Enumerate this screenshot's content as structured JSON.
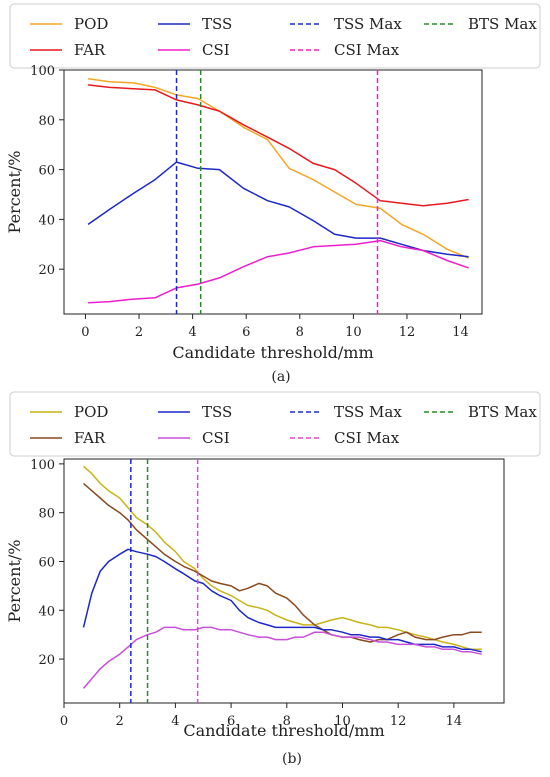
{
  "chart_data": [
    {
      "type": "line",
      "caption": "(a)",
      "xlabel": "Candidate threshold/mm",
      "ylabel": "Percent/%",
      "xlim": [
        -0.8,
        14.8
      ],
      "ylim": [
        2,
        100
      ],
      "xticks": [
        0,
        2,
        4,
        6,
        8,
        10,
        12,
        14
      ],
      "yticks": [
        20,
        40,
        60,
        80,
        100
      ],
      "grid": false,
      "legend_position": "top",
      "series": [
        {
          "name": "POD",
          "color": "#f5a623",
          "style": "solid",
          "x": [
            0.1,
            0.9,
            1.8,
            2.6,
            3.4,
            4.2,
            5.0,
            5.9,
            6.8,
            7.6,
            8.5,
            9.3,
            10.1,
            11.0,
            11.8,
            12.6,
            13.5,
            14.3
          ],
          "y": [
            96.5,
            95.3,
            94.8,
            93.0,
            90.0,
            88.5,
            83.5,
            77.0,
            72.0,
            60.5,
            56.0,
            51.0,
            46.0,
            44.5,
            38.0,
            34.0,
            28.0,
            24.5
          ]
        },
        {
          "name": "FAR",
          "color": "#e8191c",
          "style": "solid",
          "x": [
            0.1,
            0.9,
            1.8,
            2.6,
            3.4,
            4.2,
            5.0,
            5.9,
            6.8,
            7.6,
            8.5,
            9.3,
            10.1,
            11.0,
            11.8,
            12.6,
            13.5,
            14.3
          ],
          "y": [
            94.0,
            93.0,
            92.5,
            92.0,
            88.0,
            86.0,
            83.5,
            78.0,
            73.0,
            68.5,
            62.5,
            60.0,
            54.5,
            47.5,
            46.5,
            45.5,
            46.5,
            48.0
          ]
        },
        {
          "name": "TSS",
          "color": "#1c28c8",
          "style": "solid",
          "x": [
            0.1,
            0.9,
            1.8,
            2.6,
            3.4,
            4.2,
            5.0,
            5.9,
            6.8,
            7.6,
            8.5,
            9.3,
            10.1,
            11.0,
            11.8,
            12.6,
            13.5,
            14.3
          ],
          "y": [
            38.0,
            44.0,
            50.5,
            56.0,
            63.0,
            60.5,
            60.0,
            52.5,
            47.5,
            45.0,
            39.5,
            34.0,
            32.5,
            32.5,
            30.0,
            27.5,
            26.0,
            25.0
          ]
        },
        {
          "name": "CSI",
          "color": "#f01ecd",
          "style": "solid",
          "x": [
            0.1,
            0.9,
            1.8,
            2.6,
            3.4,
            4.2,
            5.0,
            5.9,
            6.8,
            7.6,
            8.5,
            9.3,
            10.1,
            11.0,
            11.8,
            12.6,
            13.5,
            14.3
          ],
          "y": [
            6.5,
            7.0,
            8.0,
            8.5,
            12.5,
            14.0,
            16.5,
            21.0,
            25.0,
            26.5,
            29.0,
            29.5,
            30.0,
            31.5,
            29.0,
            27.5,
            23.5,
            20.5
          ]
        },
        {
          "name": "TSS Max",
          "color": "#1c28c8",
          "style": "dashed",
          "vline": 3.4
        },
        {
          "name": "CSI Max",
          "color": "#f01ecd",
          "style": "dashed",
          "vline": 10.9
        },
        {
          "name": "BTS Max",
          "color": "#2a8a2a",
          "style": "dashed",
          "vline": 4.3
        }
      ]
    },
    {
      "type": "line",
      "caption": "(b)",
      "xlabel": "Candidate threshold/mm",
      "ylabel": "Percent/%",
      "xlim": [
        0,
        15.8
      ],
      "ylim": [
        2,
        102
      ],
      "xticks": [
        0,
        2,
        4,
        6,
        8,
        10,
        12,
        14
      ],
      "yticks": [
        20,
        40,
        60,
        80,
        100
      ],
      "grid": false,
      "legend_position": "top",
      "series": [
        {
          "name": "POD",
          "color": "#c9b416",
          "style": "solid",
          "x": [
            0.7,
            1.0,
            1.3,
            1.6,
            2.0,
            2.3,
            2.6,
            3.0,
            3.3,
            3.6,
            4.0,
            4.3,
            4.7,
            5.0,
            5.3,
            5.6,
            6.0,
            6.3,
            6.6,
            7.0,
            7.3,
            7.6,
            8.0,
            8.3,
            8.6,
            9.0,
            9.3,
            9.6,
            10.0,
            10.3,
            10.6,
            11.0,
            11.3,
            11.6,
            12.0,
            12.3,
            12.6,
            13.0,
            13.3,
            13.6,
            14.0,
            14.3,
            14.6,
            15.0
          ],
          "y": [
            99,
            96,
            92,
            89,
            86,
            82,
            78,
            75,
            72,
            68,
            64,
            60,
            57,
            53,
            50,
            48,
            46,
            44,
            42,
            41,
            40,
            38,
            36,
            35,
            34,
            34,
            35,
            36,
            37,
            36,
            35,
            34,
            33,
            33,
            32,
            31,
            30,
            29,
            28,
            27,
            26,
            25,
            24,
            24
          ]
        },
        {
          "name": "FAR",
          "color": "#8b4a1e",
          "style": "solid",
          "x": [
            0.7,
            1.0,
            1.3,
            1.6,
            2.0,
            2.3,
            2.6,
            3.0,
            3.3,
            3.6,
            4.0,
            4.3,
            4.7,
            5.0,
            5.3,
            5.6,
            6.0,
            6.3,
            6.6,
            7.0,
            7.3,
            7.6,
            8.0,
            8.3,
            8.6,
            9.0,
            9.3,
            9.6,
            10.0,
            10.3,
            10.6,
            11.0,
            11.3,
            11.6,
            12.0,
            12.3,
            12.6,
            13.0,
            13.3,
            13.6,
            14.0,
            14.3,
            14.6,
            15.0
          ],
          "y": [
            92,
            89,
            86,
            83,
            80,
            77,
            73,
            69,
            66,
            63,
            60,
            58,
            56,
            54,
            52,
            51,
            50,
            48,
            49,
            51,
            50,
            47,
            45,
            42,
            38,
            34,
            32,
            30,
            29,
            29,
            28,
            27,
            28,
            28,
            30,
            31,
            29,
            28,
            28,
            29,
            30,
            30,
            31,
            31
          ]
        },
        {
          "name": "TSS",
          "color": "#1c28c8",
          "style": "solid",
          "x": [
            0.7,
            1.0,
            1.3,
            1.6,
            2.0,
            2.3,
            2.6,
            3.0,
            3.3,
            3.6,
            4.0,
            4.3,
            4.7,
            5.0,
            5.3,
            5.6,
            6.0,
            6.3,
            6.6,
            7.0,
            7.3,
            7.6,
            8.0,
            8.3,
            8.6,
            9.0,
            9.3,
            9.6,
            10.0,
            10.3,
            10.6,
            11.0,
            11.3,
            11.6,
            12.0,
            12.3,
            12.6,
            13.0,
            13.3,
            13.6,
            14.0,
            14.3,
            14.6,
            15.0
          ],
          "y": [
            33,
            47,
            56,
            60,
            63,
            65,
            64,
            63,
            62,
            60,
            57,
            55,
            52,
            51,
            48,
            46,
            44,
            40,
            37,
            35,
            34,
            33,
            33,
            33,
            33,
            33,
            32,
            32,
            31,
            30,
            30,
            29,
            29,
            28,
            28,
            27,
            26,
            26,
            26,
            25,
            25,
            24,
            24,
            23
          ]
        },
        {
          "name": "CSI",
          "color": "#c94fdc",
          "style": "solid",
          "x": [
            0.7,
            1.0,
            1.3,
            1.6,
            2.0,
            2.3,
            2.6,
            3.0,
            3.3,
            3.6,
            4.0,
            4.3,
            4.7,
            5.0,
            5.3,
            5.6,
            6.0,
            6.3,
            6.6,
            7.0,
            7.3,
            7.6,
            8.0,
            8.3,
            8.6,
            9.0,
            9.3,
            9.6,
            10.0,
            10.3,
            10.6,
            11.0,
            11.3,
            11.6,
            12.0,
            12.3,
            12.6,
            13.0,
            13.3,
            13.6,
            14.0,
            14.3,
            14.6,
            15.0
          ],
          "y": [
            8,
            12,
            16,
            19,
            22,
            25,
            28,
            30,
            31,
            33,
            33,
            32,
            32,
            33,
            33,
            32,
            32,
            31,
            30,
            29,
            29,
            28,
            28,
            29,
            29,
            31,
            31,
            30,
            29,
            29,
            29,
            28,
            27,
            27,
            26,
            26,
            26,
            25,
            25,
            24,
            24,
            23,
            23,
            22
          ]
        },
        {
          "name": "TSS Max",
          "color": "#1c28c8",
          "style": "dashed",
          "vline": 2.4
        },
        {
          "name": "CSI Max",
          "color": "#d64ad8",
          "style": "dashed",
          "vline": 4.8
        },
        {
          "name": "BTS Max",
          "color": "#2a8a2a",
          "style": "dashed",
          "vline": 3.0
        }
      ]
    }
  ]
}
